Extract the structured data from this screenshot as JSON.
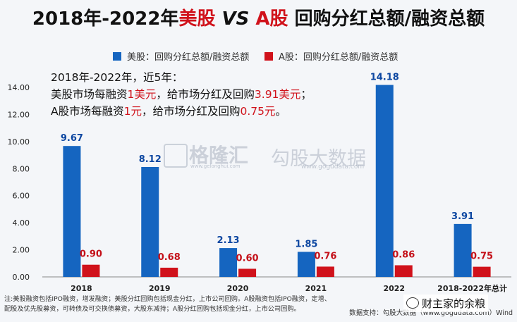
{
  "chart_data": {
    "type": "bar",
    "title": {
      "p1": "2018年-2022年",
      "p2": "美股",
      "p3": " VS ",
      "p4": "A股",
      "p5": " 回购分红总额/融资总额"
    },
    "categories": [
      "2018",
      "2019",
      "2020",
      "2021",
      "2022",
      "2018-2022年总计"
    ],
    "series": [
      {
        "name": "美股：回购分红总额/融资总额",
        "color": "#1565c0",
        "values": [
          9.67,
          8.12,
          2.13,
          1.85,
          14.18,
          3.91
        ]
      },
      {
        "name": "A股：回购分红总额/融资总额",
        "color": "#d0121b",
        "values": [
          0.9,
          0.68,
          0.6,
          0.76,
          0.86,
          0.75
        ]
      }
    ],
    "ylim": [
      0,
      14
    ],
    "yticks": [
      "0.00",
      "2.00",
      "4.00",
      "6.00",
      "8.00",
      "10.00",
      "12.00",
      "14.00"
    ],
    "grid": false,
    "legend_position": "top",
    "annotation": {
      "line1": "2018年-2022年，近5年：",
      "line2_a": "美股市场每融资",
      "line2_b": "1美元",
      "line2_c": "，给市场分红及回购",
      "line2_d": "3.91美元",
      "line2_e": "；",
      "line3_a": "A股市场每融资",
      "line3_b": "1元",
      "line3_c": "，给市场分红及回购",
      "line3_d": "0.75元",
      "line3_e": "。"
    }
  },
  "notes": {
    "line1": "注:美股融资包括IPO融资，增发融资；美股分红回购包括现金分红，上市公司回购。A股融资包括IPO融资，定增、",
    "line2": "配股及优先股募资，可转债及可交换债募资，大股东减持；A股分红回购包括现金分红，上市公司回购。"
  },
  "source": "数据支持：勾股大数据（www.gogudata.com）Wind",
  "watermark": {
    "brand1": "格隆汇",
    "sub1": "www.gelonghui.com",
    "brand2": "勾股大数据",
    "sub2": "www.gogudata.com"
  },
  "overlay_brand": "财主家的余粮"
}
